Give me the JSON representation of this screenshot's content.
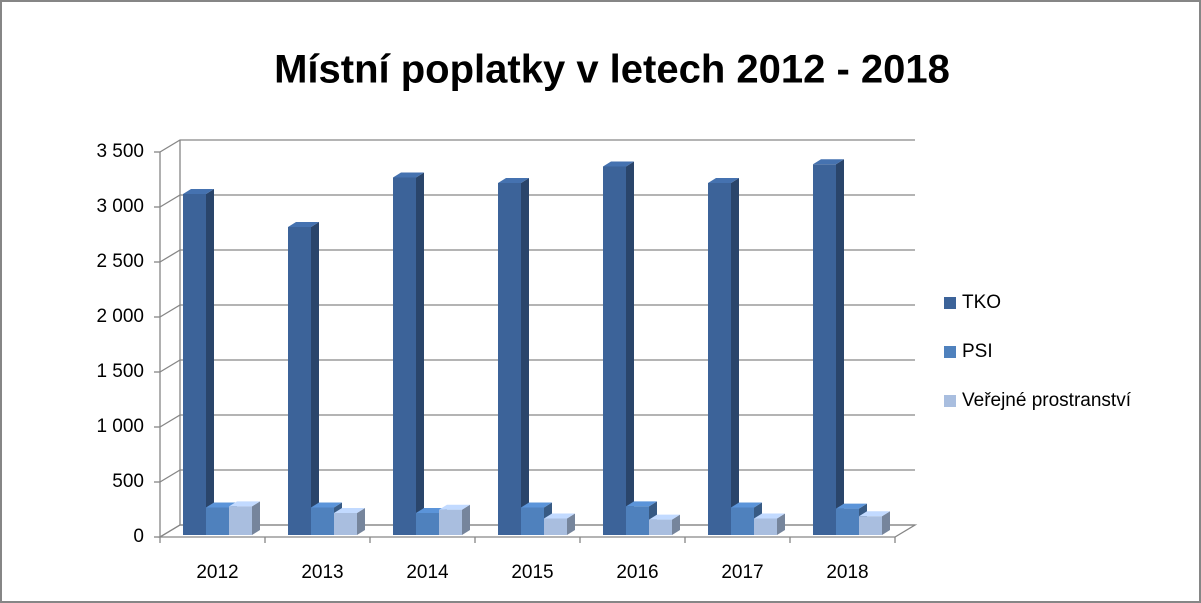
{
  "chart_data": {
    "type": "bar3d",
    "title": "Místní poplatky v letech 2012 - 2018",
    "categories": [
      "2012",
      "2013",
      "2014",
      "2015",
      "2016",
      "2017",
      "2018"
    ],
    "series": [
      {
        "name": "TKO",
        "color": "#3c6399",
        "values": [
          3100,
          2800,
          3250,
          3200,
          3350,
          3200,
          3370
        ]
      },
      {
        "name": "PSI",
        "color": "#4f81bd",
        "values": [
          250,
          250,
          200,
          250,
          260,
          250,
          240
        ]
      },
      {
        "name": "Veřejné prostranství",
        "color": "#a9bedf",
        "values": [
          260,
          200,
          230,
          150,
          140,
          150,
          170
        ]
      }
    ],
    "ylim": [
      0,
      3500
    ],
    "yticks": [
      0,
      500,
      {
        "value": 1000,
        "label": "1 000"
      },
      {
        "value": 1500,
        "label": "1 500"
      },
      {
        "value": 2000,
        "label": "2 000"
      },
      {
        "value": 2500,
        "label": "2 500"
      },
      {
        "value": 3000,
        "label": "3 000"
      },
      {
        "value": 3500,
        "label": "3 500"
      }
    ],
    "grid": true,
    "legend": "right"
  }
}
